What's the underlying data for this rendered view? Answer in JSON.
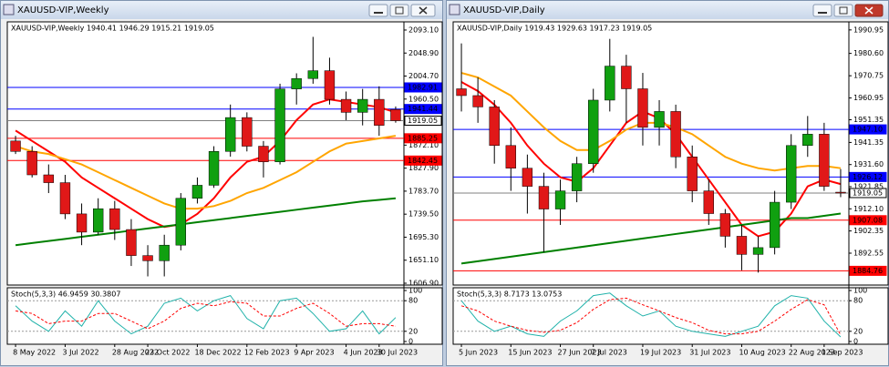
{
  "windows": [
    {
      "title": "XAUUSD-VIP,Weekly"
    },
    {
      "title": "XAUUSD-VIP,Daily"
    }
  ],
  "chart_data": [
    {
      "type": "candlestick",
      "header": "XAUUSD-VIP,Weekly  1940.41 1946.29 1915.21 1919.05",
      "categories": [
        "8 May 2022",
        null,
        null,
        "3 Jul 2022",
        null,
        null,
        "28 Aug 2022",
        null,
        "23 Oct 2022",
        null,
        null,
        "18 Dec 2022",
        null,
        null,
        "12 Feb 2023",
        null,
        null,
        "9 Apr 2023",
        null,
        null,
        "4 Jun 2023",
        null,
        "30 Jul 2023",
        null
      ],
      "ohlc": [
        [
          1880,
          1890,
          1855,
          1860
        ],
        [
          1860,
          1870,
          1810,
          1815
        ],
        [
          1815,
          1835,
          1780,
          1800
        ],
        [
          1800,
          1815,
          1730,
          1740
        ],
        [
          1740,
          1760,
          1680,
          1705
        ],
        [
          1705,
          1770,
          1700,
          1750
        ],
        [
          1750,
          1765,
          1690,
          1710
        ],
        [
          1710,
          1730,
          1640,
          1660
        ],
        [
          1660,
          1680,
          1620,
          1650
        ],
        [
          1650,
          1700,
          1620,
          1680
        ],
        [
          1680,
          1780,
          1670,
          1770
        ],
        [
          1770,
          1810,
          1760,
          1795
        ],
        [
          1795,
          1870,
          1790,
          1860
        ],
        [
          1860,
          1950,
          1850,
          1925
        ],
        [
          1925,
          1935,
          1860,
          1870
        ],
        [
          1870,
          1880,
          1810,
          1840
        ],
        [
          1840,
          1990,
          1835,
          1980
        ],
        [
          1980,
          2010,
          1950,
          2000
        ],
        [
          2000,
          2080,
          1990,
          2015
        ],
        [
          2015,
          2040,
          1950,
          1960
        ],
        [
          1960,
          1975,
          1920,
          1935
        ],
        [
          1935,
          1980,
          1910,
          1960
        ],
        [
          1960,
          1985,
          1890,
          1910
        ],
        [
          1940.41,
          1946.29,
          1915.21,
          1919.05
        ]
      ],
      "up_color": "#10a010",
      "down_color": "#e01818",
      "series": [
        {
          "color": "#ff0000",
          "values": [
            1900,
            1880,
            1860,
            1840,
            1810,
            1790,
            1770,
            1750,
            1730,
            1715,
            1720,
            1740,
            1770,
            1810,
            1840,
            1850,
            1880,
            1920,
            1950,
            1960,
            1955,
            1950,
            1945,
            1935
          ]
        },
        {
          "color": "#ffa500",
          "values": [
            1870,
            1860,
            1855,
            1845,
            1835,
            1820,
            1805,
            1790,
            1775,
            1760,
            1750,
            1750,
            1755,
            1765,
            1780,
            1790,
            1805,
            1820,
            1840,
            1860,
            1875,
            1880,
            1885,
            1890
          ]
        },
        {
          "color": "#008000",
          "values": [
            1680,
            1684,
            1688,
            1692,
            1696,
            1700,
            1704,
            1708,
            1712,
            1716,
            1720,
            1724,
            1728,
            1732,
            1736,
            1740,
            1744,
            1748,
            1752,
            1756,
            1760,
            1764,
            1767,
            1770
          ]
        }
      ],
      "ylim": [
        1603.4,
        2108.8
      ],
      "yticks": [
        {
          "value": 2093.1,
          "label": "2093.10"
        },
        {
          "value": 2048.9,
          "label": "2048.90"
        },
        {
          "value": 2004.7,
          "label": "2004.70"
        },
        {
          "value": 1960.5,
          "label": "1960.50"
        },
        {
          "value": 1872.1,
          "label": "1872.10"
        },
        {
          "value": 1827.9,
          "label": "1827.90"
        },
        {
          "value": 1783.7,
          "label": "1783.70"
        },
        {
          "value": 1739.5,
          "label": "1739.50"
        },
        {
          "value": 1695.3,
          "label": "1695.30"
        },
        {
          "value": 1651.1,
          "label": "1651.10"
        },
        {
          "value": 1606.9,
          "label": "1606.90"
        }
      ],
      "levels": [
        {
          "value": 1982.91,
          "color": "#0000ff"
        },
        {
          "value": 1941.44,
          "color": "#0000ff"
        },
        {
          "value": 1919.05,
          "color": "#808080"
        },
        {
          "value": 1885.25,
          "color": "#ff0000"
        },
        {
          "value": 1842.45,
          "color": "#ff0000"
        }
      ],
      "stoch": {
        "label": "Stoch(5,3,3) 46.9459 30.3807",
        "ylim": [
          0,
          100
        ],
        "yticks": [
          100,
          80,
          20,
          0
        ],
        "main": [
          70,
          40,
          20,
          60,
          30,
          80,
          40,
          15,
          30,
          75,
          85,
          60,
          80,
          90,
          45,
          25,
          80,
          85,
          55,
          20,
          25,
          60,
          15,
          47
        ],
        "signal": [
          60,
          55,
          35,
          40,
          40,
          55,
          55,
          40,
          25,
          40,
          65,
          75,
          70,
          78,
          75,
          50,
          50,
          65,
          75,
          55,
          30,
          35,
          35,
          30
        ],
        "main_color": "#20b2aa",
        "signal_color": "#ff0000"
      }
    },
    {
      "type": "candlestick",
      "header": "XAUUSD-VIP,Daily  1919.43 1929.63 1917.23 1919.05",
      "categories": [
        "5 Jun 2023",
        null,
        null,
        "15 Jun 2023",
        null,
        null,
        "27 Jun 2023",
        null,
        "7 Jul 2023",
        null,
        null,
        "19 Jul 2023",
        null,
        null,
        "31 Jul 2023",
        null,
        null,
        "10 Aug 2023",
        null,
        null,
        "22 Aug 2023",
        null,
        "1 Sep 2023",
        null
      ],
      "ohlc": [
        [
          1965,
          1985,
          1955,
          1962
        ],
        [
          1962,
          1970,
          1950,
          1957
        ],
        [
          1957,
          1960,
          1932,
          1940
        ],
        [
          1940,
          1948,
          1920,
          1930
        ],
        [
          1930,
          1936,
          1910,
          1922
        ],
        [
          1922,
          1928,
          1893,
          1912
        ],
        [
          1912,
          1925,
          1905,
          1920
        ],
        [
          1920,
          1935,
          1915,
          1932
        ],
        [
          1932,
          1965,
          1928,
          1960
        ],
        [
          1960,
          1987,
          1955,
          1975
        ],
        [
          1975,
          1980,
          1950,
          1965
        ],
        [
          1965,
          1972,
          1940,
          1948
        ],
        [
          1948,
          1960,
          1940,
          1955
        ],
        [
          1955,
          1958,
          1930,
          1935
        ],
        [
          1935,
          1940,
          1915,
          1920
        ],
        [
          1920,
          1925,
          1905,
          1910
        ],
        [
          1910,
          1912,
          1895,
          1900
        ],
        [
          1900,
          1905,
          1885,
          1892
        ],
        [
          1892,
          1900,
          1884,
          1895
        ],
        [
          1895,
          1920,
          1892,
          1915
        ],
        [
          1915,
          1945,
          1912,
          1940
        ],
        [
          1940,
          1953,
          1935,
          1945
        ],
        [
          1945,
          1950,
          1920,
          1922
        ],
        [
          1919.43,
          1929.63,
          1917.23,
          1919.05
        ]
      ],
      "up_color": "#10a010",
      "down_color": "#e01818",
      "series": [
        {
          "color": "#ff0000",
          "values": [
            1968,
            1964,
            1958,
            1950,
            1940,
            1932,
            1926,
            1924,
            1930,
            1940,
            1950,
            1955,
            1952,
            1945,
            1935,
            1925,
            1915,
            1905,
            1900,
            1902,
            1910,
            1922,
            1925,
            1923
          ]
        },
        {
          "color": "#ffa500",
          "values": [
            1972,
            1970,
            1966,
            1962,
            1955,
            1948,
            1942,
            1938,
            1938,
            1942,
            1947,
            1950,
            1950,
            1948,
            1945,
            1940,
            1935,
            1932,
            1930,
            1929,
            1930,
            1931,
            1931,
            1930
          ]
        },
        {
          "color": "#008000",
          "values": [
            1888,
            1889,
            1890,
            1891,
            1892,
            1893,
            1894,
            1895,
            1896,
            1897,
            1898,
            1899,
            1900,
            1901,
            1902,
            1903,
            1904,
            1905,
            1906,
            1907,
            1908,
            1908,
            1909,
            1910
          ]
        }
      ],
      "ylim": [
        1878.5,
        1994.5
      ],
      "yticks": [
        {
          "value": 1990.95,
          "label": "1990.95"
        },
        {
          "value": 1980.6,
          "label": "1980.60"
        },
        {
          "value": 1970.75,
          "label": "1970.75"
        },
        {
          "value": 1960.95,
          "label": "1960.95"
        },
        {
          "value": 1951.35,
          "label": "1951.35"
        },
        {
          "value": 1941.35,
          "label": "1941.35"
        },
        {
          "value": 1931.6,
          "label": "1931.60"
        },
        {
          "value": 1921.85,
          "label": "1921.85"
        },
        {
          "value": 1912.1,
          "label": "1912.10"
        },
        {
          "value": 1902.35,
          "label": "1902.35"
        },
        {
          "value": 1892.55,
          "label": "1892.55"
        }
      ],
      "levels": [
        {
          "value": 1947.1,
          "label": "1947.10",
          "color": "#0000ff"
        },
        {
          "value": 1926.12,
          "color": "#0000ff"
        },
        {
          "value": 1919.05,
          "color": "#808080"
        },
        {
          "value": 1907.08,
          "color": "#ff0000"
        },
        {
          "value": 1884.76,
          "color": "#ff0000"
        }
      ],
      "stoch": {
        "label": "Stoch(5,3,3) 8.7173 13.0753",
        "ylim": [
          0,
          100
        ],
        "yticks": [
          100,
          80,
          20,
          0
        ],
        "main": [
          80,
          40,
          20,
          30,
          15,
          10,
          40,
          60,
          90,
          95,
          70,
          50,
          60,
          30,
          20,
          15,
          10,
          20,
          30,
          70,
          90,
          85,
          40,
          9
        ],
        "signal": [
          70,
          60,
          40,
          30,
          22,
          18,
          22,
          37,
          63,
          82,
          85,
          72,
          60,
          47,
          37,
          22,
          15,
          15,
          20,
          40,
          63,
          82,
          72,
          13
        ],
        "main_color": "#20b2aa",
        "signal_color": "#ff0000"
      }
    }
  ]
}
